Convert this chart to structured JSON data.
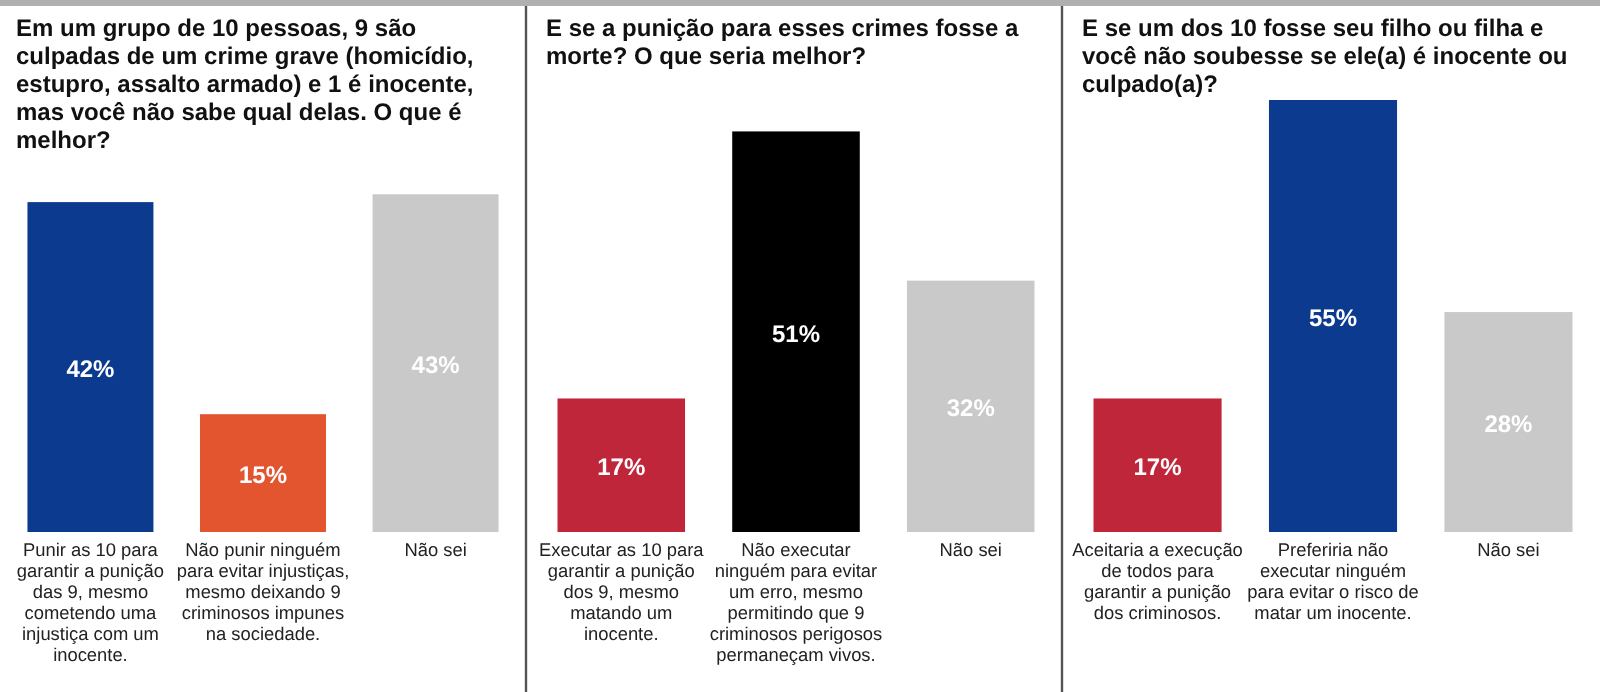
{
  "chart_data": [
    {
      "type": "bar",
      "title": "Em um grupo de 10 pessoas, 9 são culpadas de um crime grave (homicídio, estupro, assalto armado) e 1 é inocente, mas você não sabe qual delas. O que é melhor?",
      "categories": [
        "Punir as 10 para garantir a punição das 9, mesmo cometendo uma injustiça com um inocente.",
        "Não punir ninguém para evitar injustiças, mesmo deixando 9 criminosos impunes na sociedade.",
        "Não sei"
      ],
      "values": [
        42,
        15,
        43
      ],
      "colors": [
        "#0b3a8e",
        "#e2552f",
        "#c9c9c9"
      ],
      "value_labels": [
        "42%",
        "15%",
        "43%"
      ]
    },
    {
      "type": "bar",
      "title": "E se a punição para esses crimes fosse a morte? O que seria melhor?",
      "categories": [
        "Executar as 10 para garantir a punição dos 9, mesmo matando um inocente.",
        "Não executar ninguém para evitar um erro, mesmo permitindo que 9 criminosos perigosos permaneçam vivos.",
        "Não sei"
      ],
      "values": [
        17,
        51,
        32
      ],
      "colors": [
        "#c0263a",
        "#000000",
        "#c9c9c9"
      ],
      "value_labels": [
        "17%",
        "51%",
        "32%"
      ]
    },
    {
      "type": "bar",
      "title": "E se um dos 10 fosse seu filho ou filha e você não soubesse se ele(a) é inocente ou culpado(a)?",
      "categories": [
        "Aceitaria a execução de todos para garantir a punição dos criminosos.",
        "Preferiria não executar ninguém para evitar o risco de matar um inocente.",
        "Não sei"
      ],
      "values": [
        17,
        55,
        28
      ],
      "colors": [
        "#c0263a",
        "#0b3a8e",
        "#c9c9c9"
      ],
      "value_labels": [
        "17%",
        "55%",
        "28%"
      ]
    }
  ]
}
